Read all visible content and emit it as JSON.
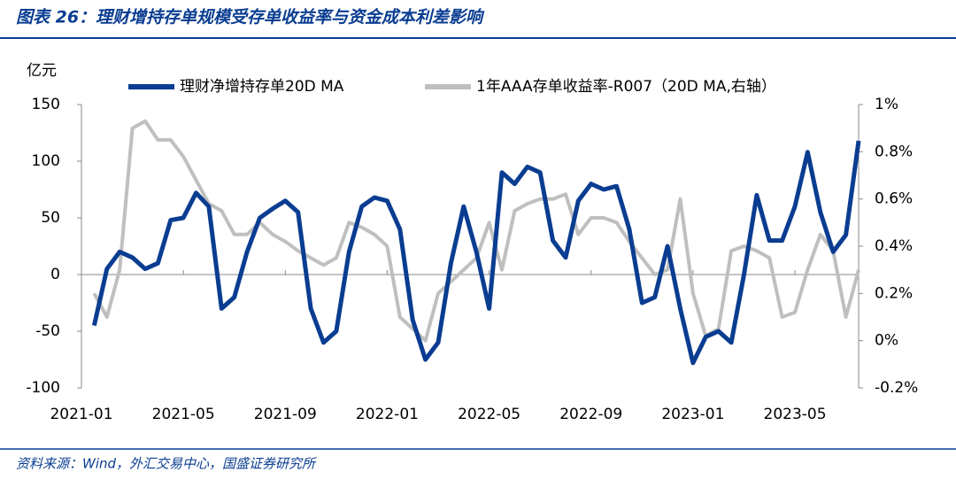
{
  "chart_data": {
    "type": "line",
    "title": "图表 26：理财增持存单规模受存单收益率与资金成本利差影响",
    "y_label": "亿元",
    "source": "资料来源：Wind，外汇交易中心，国盛证券研究所",
    "categories": [
      "2021-01",
      null,
      null,
      null,
      null,
      null,
      null,
      null,
      "2021-05",
      null,
      null,
      null,
      null,
      null,
      null,
      null,
      "2021-09",
      null,
      null,
      null,
      null,
      null,
      null,
      null,
      "2022-01",
      null,
      null,
      null,
      null,
      null,
      null,
      null,
      "2022-05",
      null,
      null,
      null,
      null,
      null,
      null,
      null,
      "2022-09",
      null,
      null,
      null,
      null,
      null,
      null,
      null,
      "2023-01",
      null,
      null,
      null,
      null,
      null,
      null,
      null,
      "2023-05",
      null,
      null,
      null,
      null,
      null
    ],
    "series": [
      {
        "name": "理财净增持存单20D MA",
        "color": "#0a3d91",
        "axis": "y",
        "values": [
          null,
          -45,
          5,
          20,
          15,
          5,
          10,
          48,
          50,
          72,
          60,
          -30,
          -20,
          20,
          50,
          58,
          65,
          55,
          -30,
          -60,
          -50,
          20,
          60,
          68,
          65,
          40,
          -40,
          -75,
          -60,
          10,
          60,
          20,
          -30,
          90,
          80,
          95,
          90,
          30,
          15,
          65,
          80,
          75,
          78,
          40,
          -25,
          -20,
          25,
          -30,
          -78,
          -55,
          -50,
          -60,
          0,
          70,
          30,
          30,
          60,
          108,
          55,
          20,
          35,
          118
        ]
      },
      {
        "name": "1年AAA存单收益率-R007（20D MA,右轴）",
        "color": "#bfbfbf",
        "axis": "y2",
        "values": [
          null,
          0.2,
          0.1,
          0.3,
          0.9,
          0.93,
          0.85,
          0.85,
          0.78,
          0.68,
          0.58,
          0.55,
          0.45,
          0.45,
          0.5,
          0.45,
          0.42,
          0.38,
          0.35,
          0.32,
          0.35,
          0.5,
          0.48,
          0.45,
          0.4,
          0.1,
          0.05,
          0.0,
          0.2,
          0.25,
          0.3,
          0.35,
          0.5,
          0.3,
          0.55,
          0.58,
          0.6,
          0.6,
          0.62,
          0.45,
          0.52,
          0.52,
          0.5,
          0.42,
          0.35,
          0.28,
          0.3,
          0.6,
          0.2,
          0.02,
          0.05,
          0.38,
          0.4,
          0.38,
          0.35,
          0.1,
          0.12,
          0.3,
          0.45,
          0.38,
          0.1,
          0.3
        ]
      }
    ],
    "ylim": [
      -100,
      150
    ],
    "yticks": [
      -100,
      -50,
      0,
      50,
      100,
      150
    ],
    "y2lim": [
      -0.2,
      1
    ],
    "y2ticks": [
      {
        "value": -0.2,
        "label": "-0.2%"
      },
      {
        "value": 0,
        "label": "0%"
      },
      {
        "value": 0.2,
        "label": "0.2%"
      },
      {
        "value": 0.4,
        "label": "0.4%"
      },
      {
        "value": 0.6,
        "label": "0.6%"
      },
      {
        "value": 0.8,
        "label": "0.8%"
      },
      {
        "value": 1,
        "label": "1%"
      }
    ],
    "grid": false,
    "legend": "top"
  }
}
